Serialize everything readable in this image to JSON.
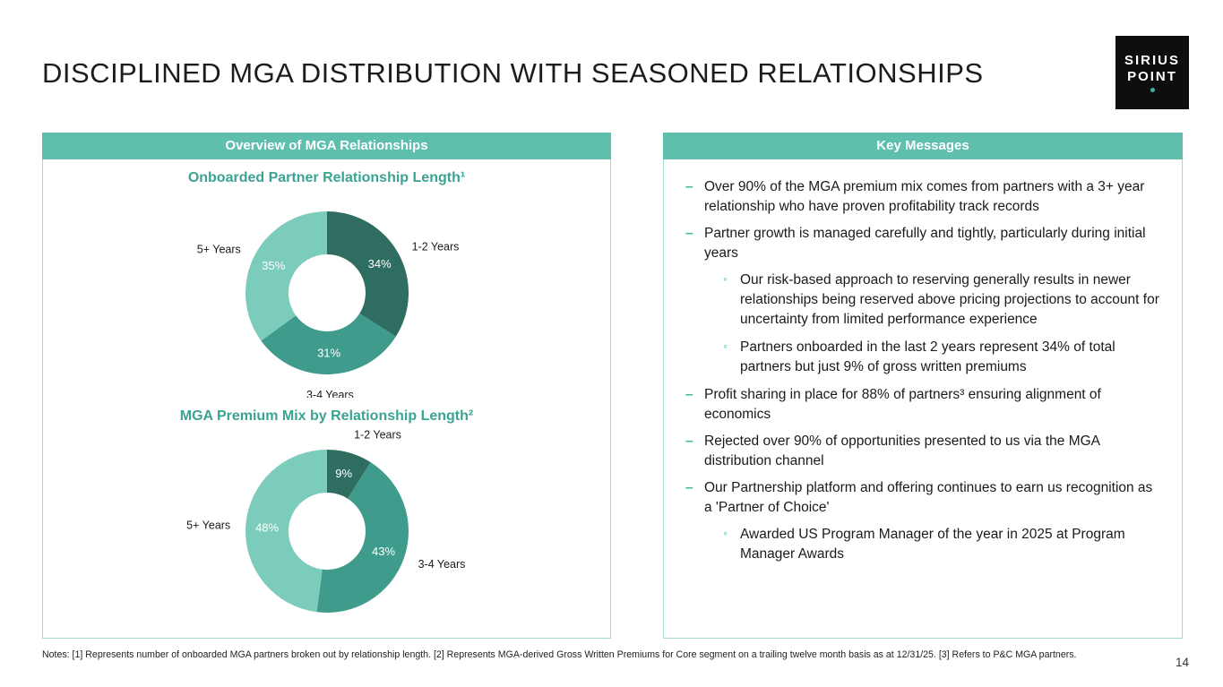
{
  "slide": {
    "title": "DISCIPLINED MGA DISTRIBUTION WITH SEASONED RELATIONSHIPS",
    "page_number": "14",
    "notes": "Notes: [1] Represents number of onboarded MGA partners broken out by relationship length. [2] Represents MGA-derived Gross Written Premiums for Core segment on a trailing twelve month basis as at 12/31/25. [3] Refers to P&C MGA partners."
  },
  "logo": {
    "line1": "SIRIUS",
    "line2": "POINT"
  },
  "left_panel": {
    "header": "Overview of MGA Relationships"
  },
  "right_panel": {
    "header": "Key Messages",
    "bullets": [
      {
        "text": "Over 90% of the MGA premium mix comes from partners with a 3+ year relationship who have proven profitability track records",
        "subs": []
      },
      {
        "text": "Partner growth is managed carefully and tightly, particularly during initial years",
        "subs": [
          "Our risk-based approach to reserving generally results in newer relationships being reserved above pricing projections to account for uncertainty from limited performance experience",
          "Partners onboarded in the last 2 years represent 34% of total partners but just 9% of gross written premiums"
        ]
      },
      {
        "text": "Profit sharing in place for 88% of partners³ ensuring alignment of economics",
        "subs": []
      },
      {
        "text": "Rejected over 90% of opportunities presented to us via the MGA distribution channel",
        "subs": []
      },
      {
        "text": "Our Partnership platform and offering continues to earn us recognition as a 'Partner of Choice'",
        "subs": [
          "Awarded US Program Manager of the year in 2025 at Program Manager Awards"
        ]
      }
    ]
  },
  "colors": {
    "accent_teal": "#5ebfac",
    "panel_border": "#a9dcd0",
    "chart_title": "#3aa392",
    "bullet_marker": "#4ab4a1",
    "label_text": "#1a1a1a",
    "segment_label": "#ffffff",
    "logo_background": "#0e0e0e",
    "logo_dot": "#3fae9b"
  },
  "chart_data": [
    {
      "type": "pie",
      "donut": true,
      "title": "Onboarded Partner Relationship Length¹",
      "categories": [
        "1-2 Years",
        "3-4 Years",
        "5+ Years"
      ],
      "values": [
        34,
        31,
        35
      ],
      "unit": "%",
      "colors": [
        "#2f6d60",
        "#3f9c8c",
        "#7bccbb"
      ],
      "start_angle": "top",
      "direction": "clockwise",
      "legend": "none",
      "labels": "outside-category-inside-percent"
    },
    {
      "type": "pie",
      "donut": true,
      "title": "MGA Premium Mix by Relationship Length²",
      "categories": [
        "1-2 Years",
        "3-4 Years",
        "5+ Years"
      ],
      "values": [
        9,
        43,
        48
      ],
      "unit": "%",
      "colors": [
        "#2f6d60",
        "#3f9c8c",
        "#7bccbb"
      ],
      "start_angle": "top",
      "direction": "clockwise",
      "legend": "none",
      "labels": "outside-category-inside-percent"
    }
  ]
}
